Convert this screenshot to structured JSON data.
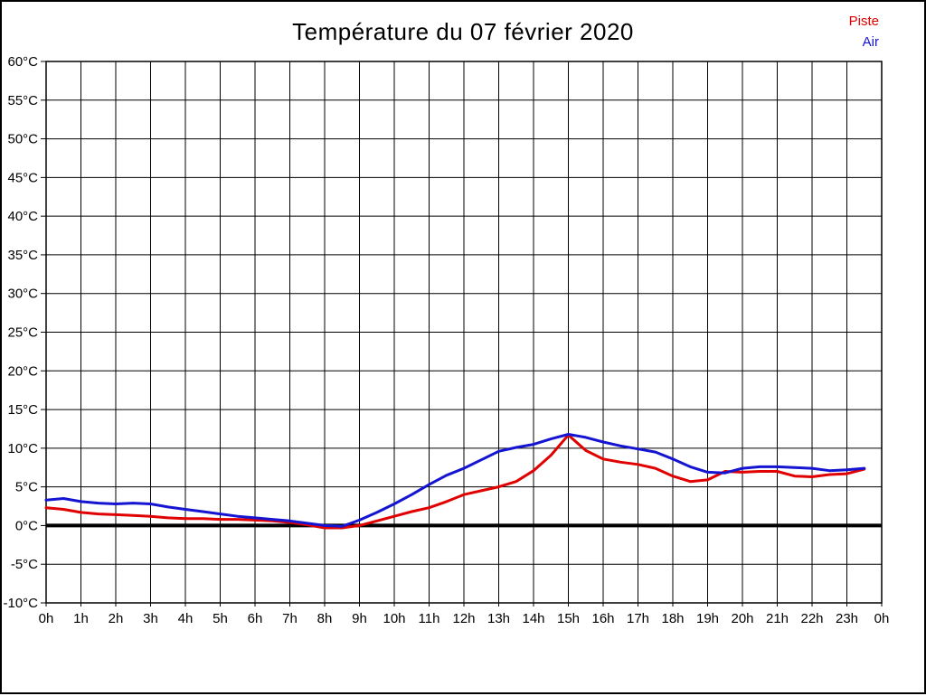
{
  "title": "Température du 07 février 2020",
  "legend": [
    {
      "label": "Piste",
      "color": "#e00000"
    },
    {
      "label": "Air",
      "color": "#1414d2"
    }
  ],
  "chart_data": {
    "type": "line",
    "title": "Température du 07 février 2020",
    "xlabel": "",
    "ylabel": "",
    "x_unit": "hour of day",
    "y_unit": "°C",
    "xlim": [
      0,
      24
    ],
    "ylim": [
      -10,
      60
    ],
    "grid": true,
    "zero_line": true,
    "legend_position": "top-right",
    "x_tick_labels": [
      "0h",
      "1h",
      "2h",
      "3h",
      "4h",
      "5h",
      "6h",
      "7h",
      "8h",
      "9h",
      "10h",
      "11h",
      "12h",
      "13h",
      "14h",
      "15h",
      "16h",
      "17h",
      "18h",
      "19h",
      "20h",
      "21h",
      "22h",
      "23h",
      "0h"
    ],
    "y_tick_labels": [
      "60°C",
      "55°C",
      "50°C",
      "45°C",
      "40°C",
      "35°C",
      "30°C",
      "25°C",
      "20°C",
      "15°C",
      "10°C",
      "5°C",
      "0°C",
      "-5°C",
      "-10°C"
    ],
    "x": [
      0,
      0.5,
      1,
      1.5,
      2,
      2.5,
      3,
      3.5,
      4,
      4.5,
      5,
      5.5,
      6,
      6.5,
      7,
      7.5,
      8,
      8.5,
      9,
      9.5,
      10,
      10.5,
      11,
      11.5,
      12,
      12.5,
      13,
      13.5,
      14,
      14.5,
      15,
      15.5,
      16,
      16.5,
      17,
      17.5,
      18,
      18.5,
      19,
      19.5,
      20,
      20.5,
      21,
      21.5,
      22,
      22.5,
      23,
      23.5
    ],
    "series": [
      {
        "name": "Piste",
        "color": "#e00000",
        "values": [
          2.3,
          2.1,
          1.7,
          1.5,
          1.4,
          1.3,
          1.2,
          1.0,
          0.9,
          0.9,
          0.8,
          0.8,
          0.7,
          0.6,
          0.4,
          0.1,
          -0.3,
          -0.3,
          0.0,
          0.6,
          1.2,
          1.8,
          2.3,
          3.1,
          4.0,
          4.5,
          5.0,
          5.7,
          7.1,
          9.1,
          11.7,
          9.7,
          8.6,
          8.2,
          7.9,
          7.4,
          6.4,
          5.7,
          5.9,
          7.0,
          6.9,
          7.0,
          7.0,
          6.4,
          6.3,
          6.6,
          6.7,
          7.3
        ]
      },
      {
        "name": "Air",
        "color": "#1414d2",
        "values": [
          3.3,
          3.5,
          3.1,
          2.9,
          2.8,
          2.9,
          2.8,
          2.4,
          2.1,
          1.8,
          1.5,
          1.2,
          1.0,
          0.8,
          0.6,
          0.3,
          0.0,
          -0.1,
          0.7,
          1.7,
          2.8,
          4.0,
          5.3,
          6.5,
          7.4,
          8.5,
          9.6,
          10.1,
          10.5,
          11.2,
          11.8,
          11.4,
          10.8,
          10.3,
          9.9,
          9.5,
          8.6,
          7.6,
          6.9,
          6.8,
          7.4,
          7.6,
          7.6,
          7.5,
          7.4,
          7.1,
          7.2,
          7.4
        ]
      }
    ]
  }
}
